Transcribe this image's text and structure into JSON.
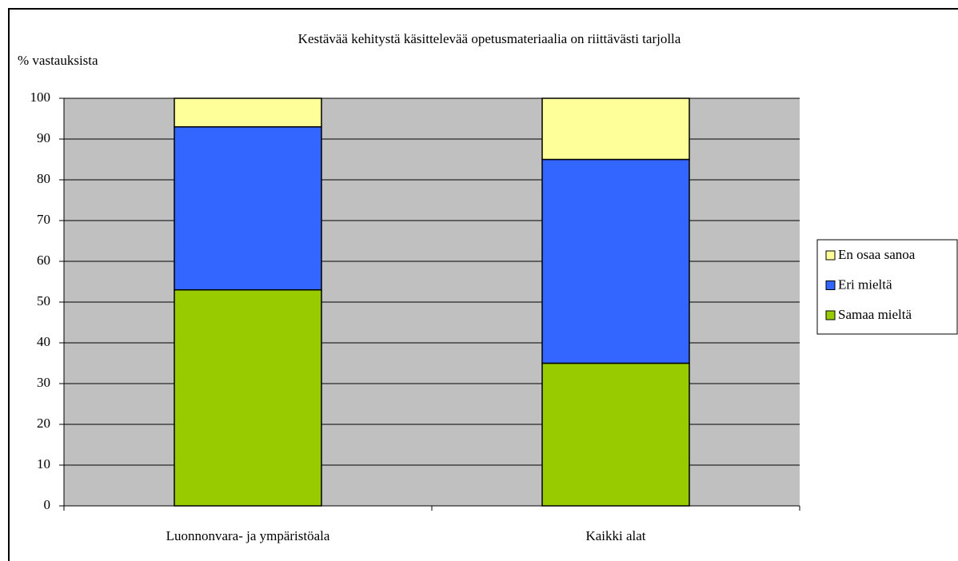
{
  "chart_data": {
    "type": "stacked_bar",
    "title": "Kestävää kehitystä käsittelevää opetusmateriaalia on riittävästi tarjolla",
    "y_label": "% vastauksista",
    "categories": [
      "Luonnonvara- ja ympäristöala",
      "Kaikki alat"
    ],
    "series": [
      {
        "name": "Samaa mieltä",
        "color": "#99cc00",
        "values": [
          53,
          35
        ]
      },
      {
        "name": "Eri mieltä",
        "color": "#3366ff",
        "values": [
          40,
          50
        ]
      },
      {
        "name": "En osaa sanoa",
        "color": "#ffff99",
        "values": [
          7,
          15
        ]
      }
    ],
    "ylim": [
      0,
      100
    ],
    "yticks": [
      0,
      10,
      20,
      30,
      40,
      50,
      60,
      70,
      80,
      90,
      100
    ],
    "grid": true,
    "legend": "right"
  }
}
